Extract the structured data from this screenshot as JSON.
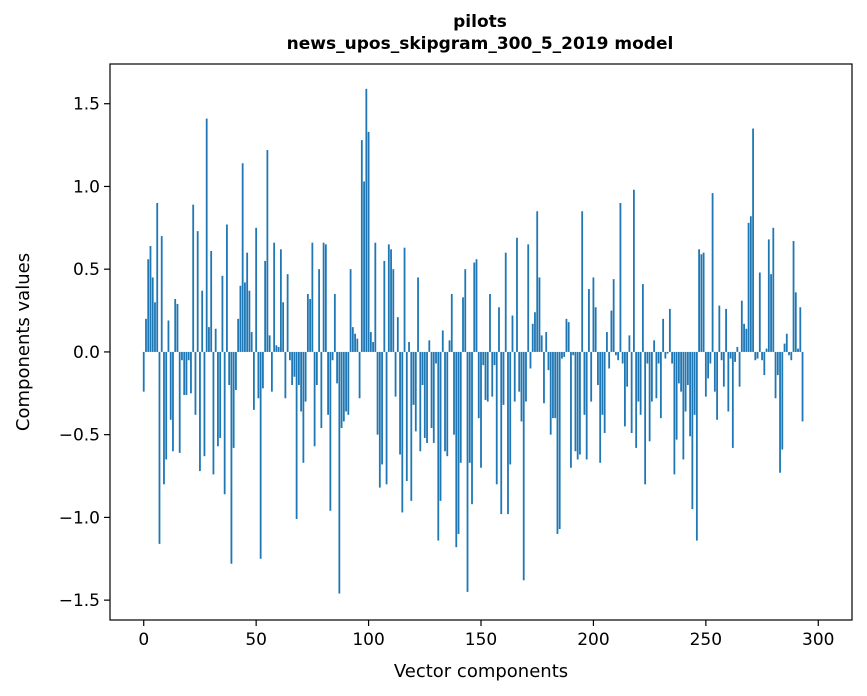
{
  "chart_data": {
    "type": "bar",
    "title": "pilots",
    "subtitle": "news_upos_skipgram_300_5_2019 model",
    "xlabel": "Vector components",
    "ylabel": "Components values",
    "xlim": [
      -15,
      315
    ],
    "ylim": [
      -1.62,
      1.74
    ],
    "xticks": [
      0,
      50,
      100,
      150,
      200,
      250,
      300
    ],
    "yticks": [
      -1.5,
      -1.0,
      -0.5,
      0.0,
      0.5,
      1.0,
      1.5
    ],
    "ytick_labels": [
      "−1.5",
      "−1.0",
      "−0.5",
      "0.0",
      "0.5",
      "1.0",
      "1.5"
    ],
    "bar_color": "#1f77b4",
    "grid": false,
    "values": [
      -0.24,
      0.2,
      0.56,
      0.64,
      0.45,
      0.3,
      0.9,
      -1.16,
      0.7,
      -0.8,
      -0.65,
      0.19,
      -0.41,
      -0.6,
      0.32,
      0.29,
      -0.61,
      -0.05,
      -0.26,
      -0.26,
      -0.05,
      -0.25,
      0.89,
      -0.38,
      0.73,
      -0.72,
      0.37,
      -0.63,
      1.41,
      0.15,
      0.61,
      -0.74,
      0.14,
      -0.57,
      -0.52,
      0.46,
      -0.86,
      0.77,
      -0.2,
      -1.28,
      -0.58,
      -0.23,
      0.2,
      0.4,
      1.14,
      0.42,
      0.6,
      0.37,
      0.12,
      -0.35,
      0.75,
      -0.28,
      -1.25,
      -0.22,
      0.55,
      1.22,
      0.1,
      -0.24,
      0.66,
      0.04,
      0.03,
      0.62,
      0.3,
      -0.28,
      0.47,
      -0.05,
      -0.2,
      -0.15,
      -1.01,
      -0.2,
      -0.36,
      -0.67,
      -0.3,
      0.35,
      0.32,
      0.66,
      -0.57,
      -0.2,
      0.5,
      -0.46,
      0.66,
      0.65,
      -0.38,
      -0.96,
      -0.05,
      0.35,
      -0.19,
      -1.46,
      -0.46,
      -0.42,
      -0.36,
      -0.38,
      0.5,
      0.15,
      0.11,
      0.08,
      -0.28,
      1.28,
      1.03,
      1.59,
      1.33,
      0.12,
      0.06,
      0.66,
      -0.5,
      -0.82,
      -0.68,
      0.55,
      -0.8,
      0.65,
      0.62,
      0.5,
      -0.27,
      0.21,
      -0.62,
      -0.97,
      0.63,
      -0.78,
      0.06,
      -0.9,
      -0.32,
      -0.48,
      0.45,
      -0.6,
      -0.2,
      -0.52,
      -0.55,
      0.07,
      -0.46,
      -0.55,
      -0.07,
      -1.14,
      -0.9,
      0.13,
      -0.6,
      -0.63,
      0.07,
      0.35,
      -0.5,
      -1.18,
      -1.1,
      -0.67,
      0.33,
      0.5,
      -1.45,
      -0.67,
      -0.92,
      0.54,
      0.56,
      -0.4,
      -0.7,
      -0.08,
      -0.29,
      -0.3,
      0.35,
      -0.27,
      -0.08,
      -0.8,
      0.27,
      -0.98,
      -0.32,
      0.6,
      -0.98,
      -0.68,
      0.22,
      -0.3,
      0.69,
      -0.24,
      -0.42,
      -1.38,
      -0.3,
      0.65,
      -0.1,
      0.17,
      0.24,
      0.85,
      0.45,
      0.1,
      -0.31,
      0.12,
      -0.11,
      -0.5,
      -0.4,
      -0.4,
      -1.1,
      -1.07,
      -0.04,
      -0.03,
      0.2,
      0.18,
      -0.7,
      -0.02,
      -0.6,
      -0.65,
      -0.62,
      0.85,
      -0.38,
      -0.65,
      0.38,
      -0.3,
      0.45,
      0.27,
      -0.2,
      -0.67,
      -0.38,
      -0.49,
      0.12,
      -0.1,
      0.25,
      0.44,
      -0.02,
      -0.05,
      0.9,
      -0.07,
      -0.45,
      -0.21,
      0.1,
      -0.49,
      0.98,
      -0.58,
      -0.3,
      -0.38,
      0.41,
      -0.8,
      -0.07,
      -0.54,
      -0.3,
      0.07,
      -0.28,
      -0.07,
      -0.4,
      0.2,
      -0.04,
      -0.01,
      0.26,
      -0.07,
      -0.74,
      -0.53,
      -0.19,
      -0.24,
      -0.65,
      -0.36,
      -0.2,
      -0.51,
      -0.95,
      -0.38,
      -1.14,
      0.62,
      0.59,
      0.6,
      -0.27,
      -0.16,
      -0.07,
      0.96,
      -0.24,
      -0.41,
      0.28,
      -0.05,
      -0.21,
      0.26,
      -0.36,
      -0.04,
      -0.58,
      -0.06,
      0.03,
      -0.21,
      0.31,
      0.17,
      0.14,
      0.78,
      0.82,
      1.35,
      -0.05,
      -0.04,
      0.48,
      -0.05,
      -0.14,
      0.02,
      0.68,
      0.47,
      0.75,
      -0.28,
      -0.14,
      -0.73,
      -0.59,
      0.05,
      0.11,
      -0.02,
      -0.05,
      0.67,
      0.36,
      0.02,
      0.27,
      -0.42
    ]
  }
}
